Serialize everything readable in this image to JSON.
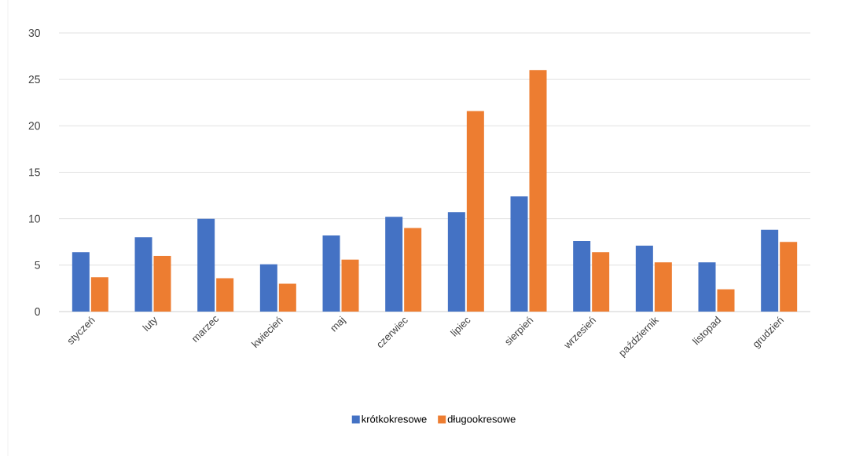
{
  "chart_data": {
    "type": "bar",
    "categories": [
      "styczeń",
      "luty",
      "marzec",
      "kwiecień",
      "maj",
      "czerwiec",
      "lipiec",
      "sierpień",
      "wrzesień",
      "październik",
      "listopad",
      "grudzień"
    ],
    "series": [
      {
        "name": "krótkokresowe",
        "color": "#4472c4",
        "values": [
          6.4,
          8.0,
          10.0,
          5.1,
          8.2,
          10.2,
          10.7,
          12.4,
          7.6,
          7.1,
          5.3,
          8.8
        ]
      },
      {
        "name": "długookresowe",
        "color": "#ed7d31",
        "values": [
          3.7,
          6.0,
          3.6,
          3.0,
          5.6,
          9.0,
          21.6,
          26.0,
          6.4,
          5.3,
          2.4,
          7.5
        ]
      }
    ],
    "ylim": [
      0,
      30
    ],
    "yticks": [
      0,
      5,
      10,
      15,
      20,
      25,
      30
    ],
    "grid": "y",
    "legend": "bottom"
  }
}
